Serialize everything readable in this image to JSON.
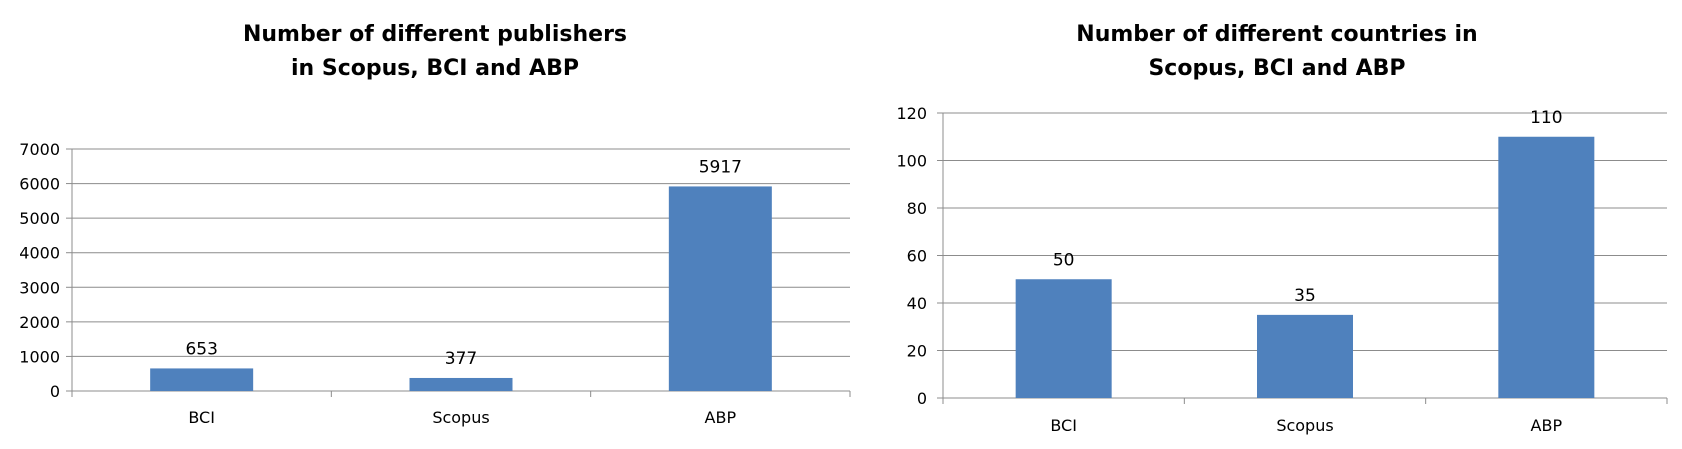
{
  "chart_data": [
    {
      "type": "bar",
      "title_lines": [
        "Number of different publishers",
        "in Scopus, BCI and ABP"
      ],
      "categories": [
        "BCI",
        "Scopus",
        "ABP"
      ],
      "values": [
        653,
        377,
        5917
      ],
      "data_labels": [
        "653",
        "377",
        "5917"
      ],
      "ylim": [
        0,
        7000
      ],
      "yticks": [
        0,
        1000,
        2000,
        3000,
        4000,
        5000,
        6000,
        7000
      ],
      "xlabel": "",
      "ylabel": "",
      "grid": true,
      "bar_color": "#4f81bd"
    },
    {
      "type": "bar",
      "title_lines": [
        "Number of different countries in",
        "Scopus, BCI and ABP"
      ],
      "categories": [
        "BCI",
        "Scopus",
        "ABP"
      ],
      "values": [
        50,
        35,
        110
      ],
      "data_labels": [
        "50",
        "35",
        "110"
      ],
      "ylim": [
        0,
        120
      ],
      "yticks": [
        0,
        20,
        40,
        60,
        80,
        100,
        120
      ],
      "xlabel": "",
      "ylabel": "",
      "grid": true,
      "bar_color": "#4f81bd"
    }
  ]
}
